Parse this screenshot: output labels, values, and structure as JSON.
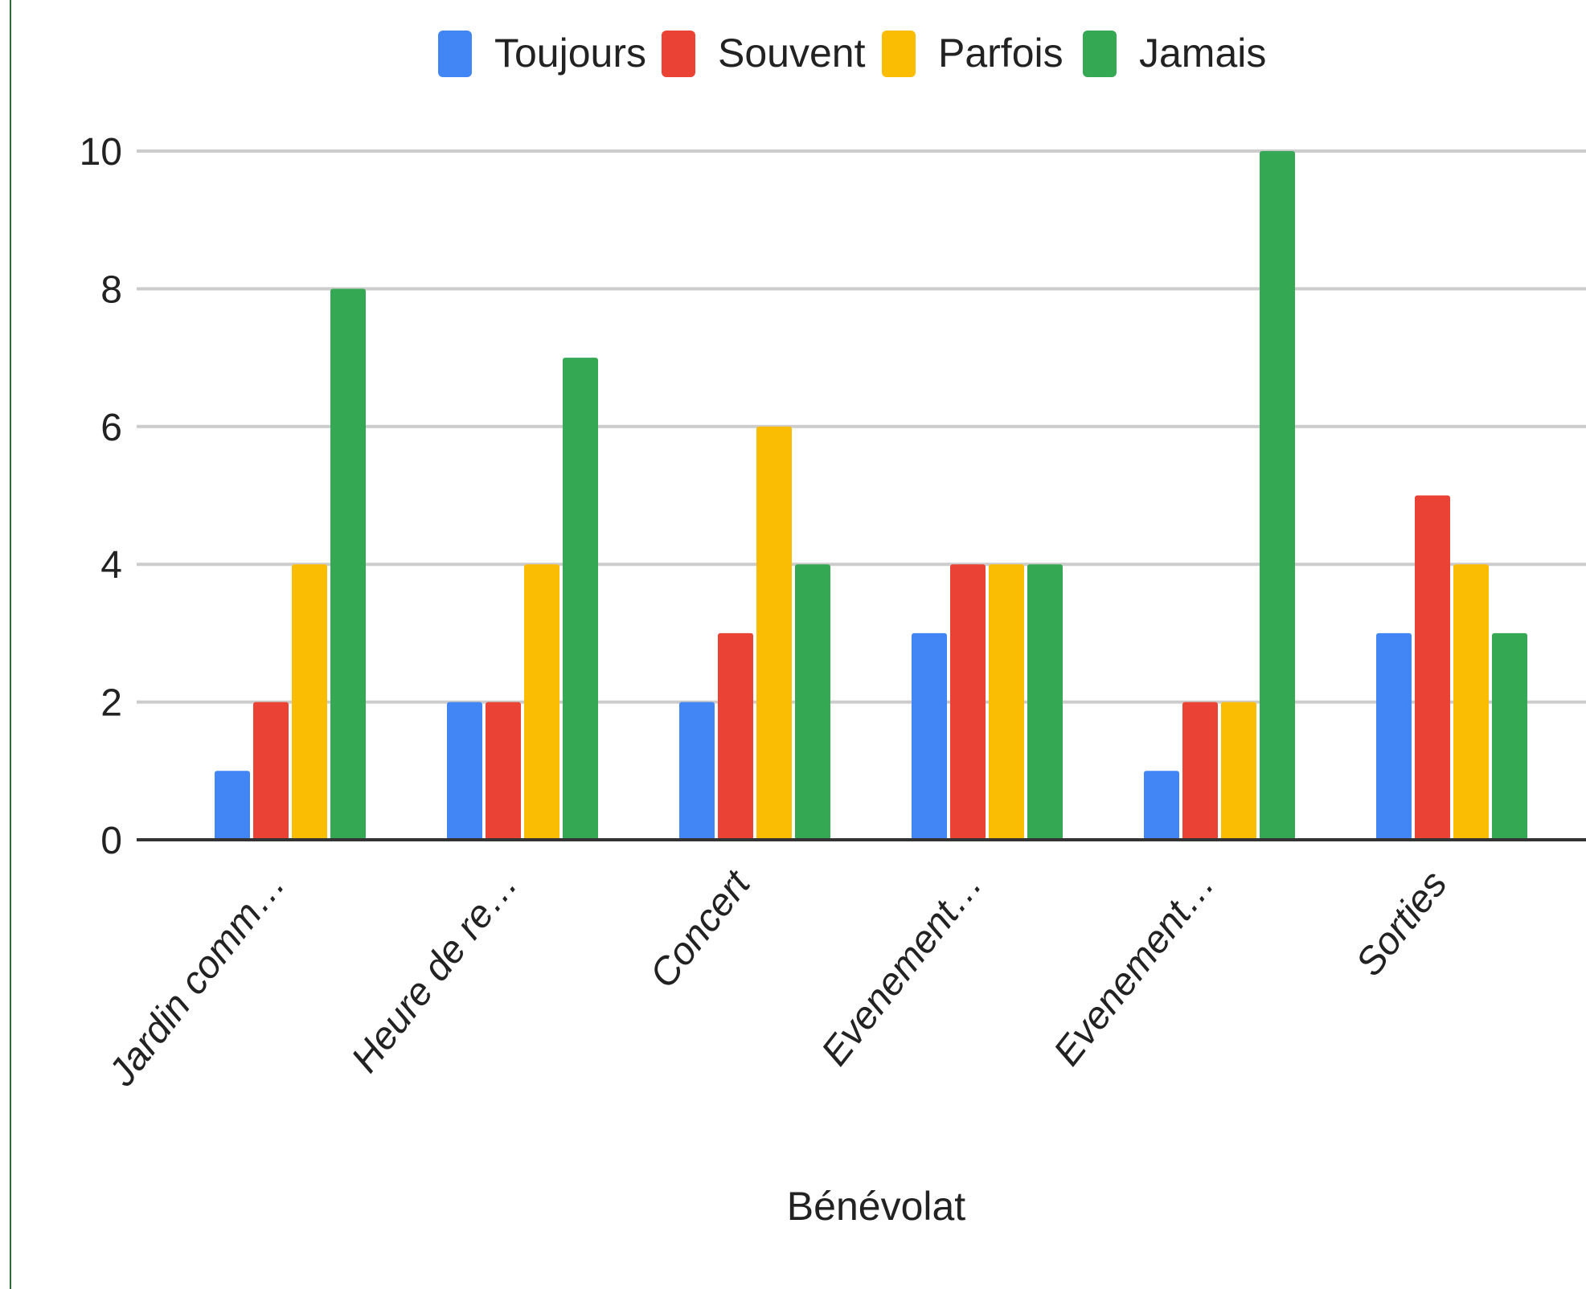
{
  "chart_data": {
    "type": "bar",
    "xlabel": "Bénévolat",
    "ylabel": "",
    "ylim": [
      0,
      10
    ],
    "yticks": [
      0,
      2,
      4,
      6,
      8,
      10
    ],
    "grid": true,
    "legend_position": "top",
    "categories": [
      "Jardin comm…",
      "Heure de re…",
      "Concert",
      "Evenement…",
      "Evenement…",
      "Sorties"
    ],
    "series": [
      {
        "name": "Toujours",
        "color": "#4285F4",
        "values": [
          1,
          2,
          2,
          3,
          1,
          3
        ]
      },
      {
        "name": "Souvent",
        "color": "#EA4335",
        "values": [
          2,
          2,
          3,
          4,
          2,
          5
        ]
      },
      {
        "name": "Parfois",
        "color": "#FBBC04",
        "values": [
          4,
          4,
          6,
          4,
          2,
          4
        ]
      },
      {
        "name": "Jamais",
        "color": "#34A853",
        "values": [
          8,
          7,
          4,
          4,
          10,
          3
        ]
      }
    ]
  }
}
